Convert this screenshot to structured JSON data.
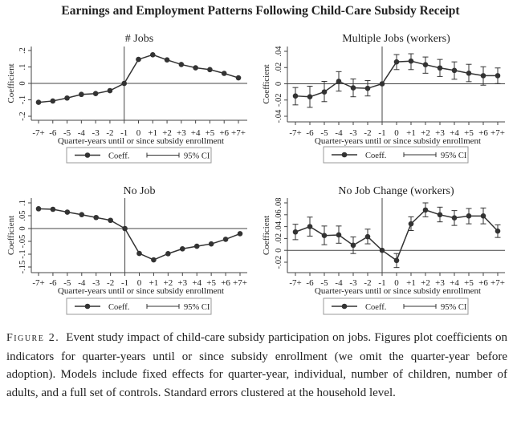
{
  "figure_title": "Earnings and Employment Patterns Following Child-Care Subsidy Receipt",
  "caption": {
    "label": "Figure 2.",
    "text": "Event study impact of child-care subsidy participation on jobs. Figures plot coefficients on indicators for quarter-years until or since subsidy enrollment (we omit the quarter-year before adoption). Models include fixed effects for quarter-year, individual, number of children, number of adults, and a full set of controls. Standard errors clustered at the household level."
  },
  "chart_data": [
    {
      "type": "line",
      "title": "# Jobs",
      "xlabel": "Quarter-years until or since subsidy enrollment",
      "ylabel": "Coefficient",
      "categories": [
        "-7+",
        "-6",
        "-5",
        "-4",
        "-3",
        "-2",
        "-1",
        "0",
        "+1",
        "+2",
        "+3",
        "+4",
        "+5",
        "+6",
        "+7+"
      ],
      "yticks": [
        "-.2",
        "-.1",
        "0",
        ".1",
        ".2"
      ],
      "ylim": [
        -0.2,
        0.2
      ],
      "values": [
        -0.115,
        -0.107,
        -0.089,
        -0.067,
        -0.062,
        -0.044,
        0,
        0.146,
        0.174,
        0.143,
        0.115,
        0.095,
        0.084,
        0.061,
        0.034
      ],
      "ci_lower": null,
      "ci_upper": null,
      "reference_lines": {
        "x": "-1",
        "y": 0
      },
      "legend": {
        "coef": "Coeff.",
        "ci": "95% CI",
        "position": "bottom"
      },
      "color": "#333333"
    },
    {
      "type": "line",
      "title": "Multiple Jobs (workers)",
      "xlabel": "Quarter-years until or since subsidy enrollment",
      "ylabel": "Coefficient",
      "categories": [
        "-7+",
        "-6",
        "-5",
        "-4",
        "-3",
        "-2",
        "-1",
        "0",
        "+1",
        "+2",
        "+3",
        "+4",
        "+5",
        "+6",
        "+7+"
      ],
      "yticks": [
        "-.04",
        "-.02",
        "0",
        ".02",
        ".04"
      ],
      "ylim": [
        -0.04,
        0.04
      ],
      "values": [
        -0.015,
        -0.016,
        -0.01,
        0.003,
        -0.005,
        -0.0056,
        0,
        0.027,
        0.028,
        0.0235,
        0.0195,
        0.0165,
        0.013,
        0.01,
        0.01
      ],
      "ci_lower": [
        -0.026,
        -0.029,
        -0.022,
        -0.009,
        -0.016,
        -0.015,
        0,
        0.0175,
        0.0175,
        0.013,
        0.009,
        0.0056,
        0.0026,
        -0.0017,
        0.0003
      ],
      "ci_upper": [
        -0.0046,
        -0.003,
        0.003,
        0.015,
        0.006,
        0.004,
        0,
        0.036,
        0.037,
        0.033,
        0.03,
        0.027,
        0.024,
        0.021,
        0.0195
      ],
      "reference_lines": {
        "x": "-1",
        "y": 0
      },
      "legend": {
        "coef": "Coeff.",
        "ci": "95% CI",
        "position": "bottom"
      },
      "color": "#333333"
    },
    {
      "type": "line",
      "title": "No Job",
      "xlabel": "Quarter-years until or since subsidy enrollment",
      "ylabel": "Coefficient",
      "categories": [
        "-7+",
        "-6",
        "-5",
        "-4",
        "-3",
        "-2",
        "-1",
        "0",
        "+1",
        "+2",
        "+3",
        "+4",
        "+5",
        "+6",
        "+7+"
      ],
      "yticks": [
        "-.15",
        "-.1",
        "-.05",
        "0",
        ".05",
        ".1"
      ],
      "ylim": [
        -0.15,
        0.1
      ],
      "values": [
        0.077,
        0.075,
        0.064,
        0.054,
        0.043,
        0.032,
        0,
        -0.097,
        -0.122,
        -0.098,
        -0.079,
        -0.069,
        -0.06,
        -0.042,
        -0.02
      ],
      "ci_lower": null,
      "ci_upper": null,
      "reference_lines": {
        "x": "-1",
        "y": 0
      },
      "legend": {
        "coef": "Coeff.",
        "ci": "95% CI",
        "position": "bottom"
      },
      "color": "#333333"
    },
    {
      "type": "line",
      "title": "No Job Change (workers)",
      "xlabel": "Quarter-years until or since subsidy enrollment",
      "ylabel": "Coefficient",
      "categories": [
        "-7+",
        "-6",
        "-5",
        "-4",
        "-3",
        "-2",
        "-1",
        "0",
        "+1",
        "+2",
        "+3",
        "+4",
        "+5",
        "+6",
        "+7+"
      ],
      "yticks": [
        "-.02",
        "0",
        ".02",
        ".04",
        ".06",
        ".08"
      ],
      "ylim": [
        -0.02,
        0.08
      ],
      "values": [
        0.031,
        0.04,
        0.025,
        0.026,
        0.0086,
        0.023,
        0,
        -0.017,
        0.0447,
        0.068,
        0.06,
        0.0547,
        0.0579,
        0.0579,
        0.0325
      ],
      "ci_lower": [
        0.018,
        0.024,
        0.0095,
        0.012,
        -0.0054,
        0.011,
        0,
        -0.029,
        0.0334,
        0.0565,
        0.048,
        0.042,
        0.0447,
        0.0447,
        0.0217
      ],
      "ci_upper": [
        0.044,
        0.056,
        0.041,
        0.041,
        0.0226,
        0.0357,
        0,
        -0.0054,
        0.0565,
        0.08,
        0.0728,
        0.067,
        0.0705,
        0.0714,
        0.043
      ],
      "reference_lines": {
        "x": "-1",
        "y": 0
      },
      "legend": {
        "coef": "Coeff.",
        "ci": "95% CI",
        "position": "bottom"
      },
      "color": "#333333"
    }
  ]
}
